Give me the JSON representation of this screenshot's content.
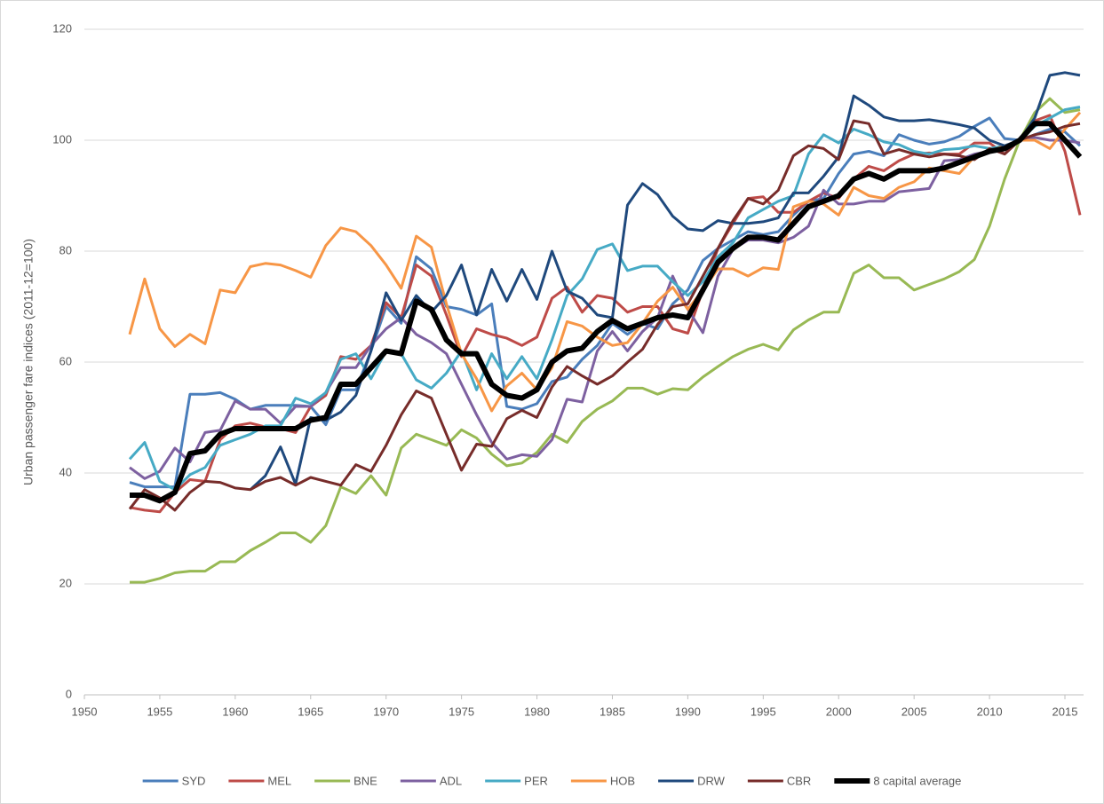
{
  "chart_data": {
    "type": "line",
    "y_label": "Urban passenger fare indices (2011-12=100)",
    "x": [
      1953,
      1954,
      1955,
      1956,
      1957,
      1958,
      1959,
      1960,
      1961,
      1962,
      1963,
      1964,
      1965,
      1966,
      1967,
      1968,
      1969,
      1970,
      1971,
      1972,
      1973,
      1974,
      1975,
      1976,
      1977,
      1978,
      1979,
      1980,
      1981,
      1982,
      1983,
      1984,
      1985,
      1986,
      1987,
      1988,
      1989,
      1990,
      1991,
      1992,
      1993,
      1994,
      1995,
      1996,
      1997,
      1998,
      1999,
      2000,
      2001,
      2002,
      2003,
      2004,
      2005,
      2006,
      2007,
      2008,
      2009,
      2010,
      2011,
      2012,
      2013,
      2014,
      2015,
      2016
    ],
    "xlim": [
      1950,
      2016
    ],
    "xticks": [
      1950,
      1955,
      1960,
      1965,
      1970,
      1975,
      1980,
      1985,
      1990,
      1995,
      2000,
      2005,
      2010,
      2015
    ],
    "ylim": [
      0,
      120
    ],
    "yticks": [
      0,
      20,
      40,
      60,
      80,
      100,
      120
    ],
    "grid": true,
    "legend": "bottom",
    "series": [
      {
        "name": "SYD",
        "color": "#4a7ebb",
        "line_width": 3,
        "values": [
          38.3,
          37.5,
          37.5,
          37.5,
          54.2,
          54.2,
          54.5,
          53.3,
          51.5,
          52.2,
          52.2,
          52.2,
          52,
          48.7,
          55,
          55,
          62,
          70,
          67,
          79,
          76.8,
          70,
          69.5,
          68.5,
          70.5,
          52,
          51.5,
          52.5,
          56.5,
          57.3,
          60.5,
          63,
          67,
          65,
          67,
          66,
          70.5,
          73,
          78.3,
          80.5,
          82,
          83.5,
          83,
          83.5,
          86.5,
          89,
          89.5,
          94,
          97.5,
          98,
          97.2,
          101,
          100,
          99.3,
          99.7,
          100.7,
          102.5,
          104,
          100.3,
          100,
          101,
          102,
          101.5,
          99
        ]
      },
      {
        "name": "MEL",
        "color": "#be4b48",
        "line_width": 3,
        "values": [
          33.8,
          33.3,
          33,
          36.5,
          38.8,
          38.5,
          46,
          48.5,
          49,
          48.3,
          48,
          47.3,
          52,
          54,
          61,
          60.5,
          63,
          70.7,
          68,
          77.5,
          75.5,
          68.5,
          61,
          66,
          65,
          64.3,
          63,
          64.5,
          71.5,
          73.5,
          69,
          72,
          71.5,
          69,
          70,
          70,
          66,
          65.2,
          73,
          80.5,
          85,
          89.5,
          89.8,
          87,
          87,
          89,
          90.5,
          89.5,
          93,
          95.3,
          94.5,
          96.3,
          97.5,
          97.7,
          97.5,
          97.5,
          99.5,
          99.5,
          97.5,
          100,
          103.5,
          104.5,
          98,
          86.5
        ]
      },
      {
        "name": "BNE",
        "color": "#98b954",
        "line_width": 3,
        "values": [
          20.3,
          20.3,
          21,
          22,
          22.3,
          22.3,
          24,
          24,
          26,
          27.5,
          29.2,
          29.2,
          27.5,
          30.5,
          37.5,
          36.3,
          39.5,
          36,
          44.5,
          47,
          46,
          45,
          47.8,
          46.3,
          43.4,
          41.3,
          41.8,
          43.7,
          47,
          45.5,
          49.3,
          51.5,
          53,
          55.3,
          55.3,
          54.2,
          55.2,
          55,
          57.3,
          59.2,
          61,
          62.3,
          63.2,
          62.2,
          65.8,
          67.6,
          69,
          69,
          76,
          77.5,
          75.2,
          75.2,
          73,
          74,
          75,
          76.3,
          78.5,
          84.5,
          93,
          100,
          105,
          107.5,
          105,
          105.5
        ]
      },
      {
        "name": "ADL",
        "color": "#7d60a0",
        "line_width": 3,
        "values": [
          41,
          39,
          40.3,
          44.5,
          42,
          47.3,
          47.7,
          53,
          51.5,
          51.5,
          49,
          52,
          52,
          54.5,
          59,
          59,
          63,
          66,
          68,
          65,
          63.5,
          61.5,
          56,
          50.5,
          45.5,
          42.5,
          43.3,
          43,
          46,
          53.3,
          52.8,
          62,
          65.5,
          62,
          65.5,
          68,
          75.5,
          69.5,
          65.3,
          75.5,
          80.3,
          82,
          82,
          81.5,
          82.5,
          84.5,
          91,
          88.5,
          88.5,
          89,
          89,
          90.7,
          91,
          91.3,
          96.3,
          96.5,
          97.5,
          98,
          98.5,
          100,
          100.5,
          100,
          100,
          99.5
        ]
      },
      {
        "name": "PER",
        "color": "#46aac5",
        "line_width": 3,
        "values": [
          42.5,
          45.5,
          38.5,
          37,
          39.7,
          41,
          45,
          46,
          47,
          48.5,
          48.5,
          53.5,
          52.5,
          54.5,
          60.5,
          61.5,
          57,
          62,
          61.5,
          56.8,
          55.3,
          58,
          62,
          55,
          61.5,
          57,
          61,
          57,
          64,
          72,
          75,
          80.3,
          81.3,
          76.5,
          77.3,
          77.3,
          74.5,
          72,
          74.5,
          79,
          81.5,
          86,
          87.5,
          89,
          90,
          97.5,
          101,
          99.5,
          102,
          101,
          99.7,
          99.2,
          98,
          97.5,
          98.3,
          98.5,
          99,
          98.5,
          99,
          100,
          102.5,
          104,
          105.5,
          106
        ]
      },
      {
        "name": "HOB",
        "color": "#f79646",
        "line_width": 3,
        "values": [
          65,
          75,
          66,
          62.8,
          65,
          63.3,
          73,
          72.5,
          77.2,
          77.8,
          77.5,
          76.5,
          75.3,
          81,
          84.2,
          83.5,
          81,
          77.5,
          73.3,
          82.7,
          80.7,
          70.5,
          61.5,
          57,
          51.2,
          55.7,
          58,
          55,
          59,
          67.3,
          66.5,
          64.5,
          63,
          63.5,
          67,
          71,
          73.5,
          69.5,
          73,
          76.8,
          76.8,
          75.5,
          77,
          76.7,
          88,
          89,
          88.5,
          86.5,
          91.5,
          90,
          89.5,
          91.5,
          92.5,
          95,
          94.5,
          94,
          97,
          98,
          99,
          100,
          100,
          98.5,
          102,
          105
        ]
      },
      {
        "name": "DRW",
        "color": "#1f497d",
        "line_width": 3,
        "values": [
          null,
          null,
          null,
          null,
          null,
          null,
          null,
          null,
          37,
          39.5,
          44.7,
          38,
          50,
          49.5,
          51,
          54,
          62,
          72.5,
          67.5,
          72,
          69,
          72,
          77.5,
          68.5,
          76.7,
          71,
          76.7,
          71.3,
          80,
          72.8,
          71.5,
          68.5,
          68,
          88.3,
          92.2,
          90.2,
          86.3,
          84,
          83.7,
          85.5,
          85,
          85,
          85.3,
          86,
          90.5,
          90.5,
          93.5,
          97,
          108,
          106.3,
          104.2,
          103.5,
          103.5,
          103.7,
          103.3,
          102.8,
          102.2,
          100,
          99,
          100,
          104,
          111.7,
          112.2,
          111.7
        ]
      },
      {
        "name": "CBR",
        "color": "#772c2a",
        "line_width": 3,
        "values": [
          33.5,
          37,
          35.5,
          33.3,
          36.5,
          38.5,
          38.3,
          37.3,
          37,
          38.5,
          39.2,
          37.8,
          39.2,
          38.5,
          37.8,
          41.5,
          40.3,
          45,
          50.5,
          54.8,
          53.5,
          47,
          40.5,
          45.2,
          44.8,
          49.8,
          51.3,
          50,
          55.5,
          59.2,
          57.5,
          56,
          57.5,
          60,
          62.3,
          66.8,
          70,
          70.5,
          75.5,
          80.5,
          85.5,
          89.5,
          88.5,
          91,
          97.2,
          99,
          98.5,
          96.5,
          103.5,
          103,
          97.5,
          98.3,
          97.5,
          97,
          97.5,
          97.2,
          96.5,
          98.5,
          97.5,
          100,
          101,
          101.5,
          102.5,
          103
        ]
      },
      {
        "name": "8 capital average",
        "color": "#000000",
        "line_width": 6,
        "values": [
          36,
          36,
          35,
          36.5,
          43.5,
          44,
          47,
          48,
          48,
          48,
          48,
          48,
          49.5,
          50,
          56,
          56,
          59,
          62,
          61.5,
          71,
          69.5,
          64,
          61.5,
          61.5,
          56,
          54,
          53.5,
          55,
          60,
          62,
          62.5,
          65.5,
          67.5,
          66,
          67,
          68,
          68.5,
          68,
          73,
          78,
          80.5,
          82.5,
          82.5,
          82,
          85,
          88,
          89,
          90,
          93,
          94,
          93,
          94.5,
          94.5,
          94.5,
          95,
          96,
          97,
          98,
          98.5,
          100,
          103,
          103,
          100,
          97
        ]
      }
    ]
  }
}
